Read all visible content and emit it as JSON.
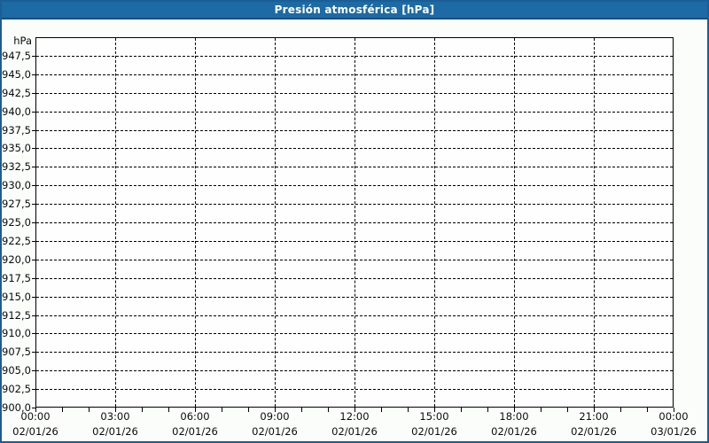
{
  "header": {
    "title": "Presión atmosférica [hPa]"
  },
  "colors": {
    "header_bg": "#1d6aa5",
    "header_text": "#ffffff",
    "window_border": "#1c5d94",
    "page_bg": "#fbfdfa",
    "plot_bg": "#fefefe",
    "plot_border": "#000000",
    "grid": "#000000",
    "tick_label": "#0b0b10"
  },
  "chart_data": {
    "type": "line",
    "title": "Presión atmosférica [hPa]",
    "ylabel": "hPa",
    "ylim": [
      900,
      950
    ],
    "y_tick_step": 2.5,
    "grid": "dashed",
    "legend": null,
    "series": [],
    "y_ticks": [
      {
        "value": 947.5,
        "label": "947,5"
      },
      {
        "value": 945.0,
        "label": "945,0"
      },
      {
        "value": 942.5,
        "label": "942,5"
      },
      {
        "value": 940.0,
        "label": "940,0"
      },
      {
        "value": 937.5,
        "label": "937,5"
      },
      {
        "value": 935.0,
        "label": "935,0"
      },
      {
        "value": 932.5,
        "label": "932,5"
      },
      {
        "value": 930.0,
        "label": "930,0"
      },
      {
        "value": 927.5,
        "label": "927,5"
      },
      {
        "value": 925.0,
        "label": "925,0"
      },
      {
        "value": 922.5,
        "label": "922,5"
      },
      {
        "value": 920.0,
        "label": "920,0"
      },
      {
        "value": 917.5,
        "label": "917,5"
      },
      {
        "value": 915.0,
        "label": "915,0"
      },
      {
        "value": 912.5,
        "label": "912,5"
      },
      {
        "value": 910.0,
        "label": "910,0"
      },
      {
        "value": 907.5,
        "label": "907,5"
      },
      {
        "value": 905.0,
        "label": "905,0"
      },
      {
        "value": 902.5,
        "label": "902,5"
      },
      {
        "value": 900.0,
        "label": "900,0"
      }
    ],
    "x_range_hours": [
      0,
      24
    ],
    "x_minor_tick_interval_hours": 1,
    "x_ticks": [
      {
        "hour": 0,
        "time": "00:00",
        "date": "02/01/26"
      },
      {
        "hour": 3,
        "time": "03:00",
        "date": "02/01/26"
      },
      {
        "hour": 6,
        "time": "06:00",
        "date": "02/01/26"
      },
      {
        "hour": 9,
        "time": "09:00",
        "date": "02/01/26"
      },
      {
        "hour": 12,
        "time": "12:00",
        "date": "02/01/26"
      },
      {
        "hour": 15,
        "time": "15:00",
        "date": "02/01/26"
      },
      {
        "hour": 18,
        "time": "18:00",
        "date": "02/01/26"
      },
      {
        "hour": 21,
        "time": "21:00",
        "date": "02/01/26"
      },
      {
        "hour": 24,
        "time": "00:00",
        "date": "03/01/26"
      }
    ]
  }
}
